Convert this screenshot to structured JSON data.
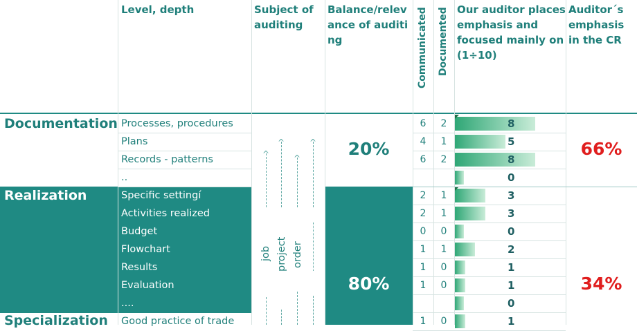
{
  "headers": {
    "level_depth": "Level, depth",
    "subject": "Subject of auditing",
    "balance": "Balance/relevance of auditing",
    "communicated": "Communicated",
    "documented": "Documented",
    "emphasis": "Our auditor places emphasis and focused mainly on (1÷10)",
    "cr": "Auditor´s emphasis in the CR"
  },
  "sections": {
    "documentation": "Documentation",
    "realization": "Realization",
    "specialization": "Specialization"
  },
  "rows": [
    {
      "item": "Processes, procedures",
      "comm": "6",
      "doc": "2",
      "emphasis": 8
    },
    {
      "item": "Plans",
      "comm": "4",
      "doc": "1",
      "emphasis": 5
    },
    {
      "item": "Records - patterns",
      "comm": "6",
      "doc": "2",
      "emphasis": 8
    },
    {
      "item": "..",
      "comm": "",
      "doc": "",
      "emphasis": 0
    },
    {
      "item": "Specific settingí",
      "comm": "2",
      "doc": "1",
      "emphasis": 3
    },
    {
      "item": "Activities realized",
      "comm": "2",
      "doc": "1",
      "emphasis": 3
    },
    {
      "item": "Budget",
      "comm": "0",
      "doc": "0",
      "emphasis": 0
    },
    {
      "item": "Flowchart",
      "comm": "1",
      "doc": "1",
      "emphasis": 2
    },
    {
      "item": "Results",
      "comm": "1",
      "doc": "0",
      "emphasis": 1
    },
    {
      "item": "Evaluation",
      "comm": "1",
      "doc": "0",
      "emphasis": 1
    },
    {
      "item": "....",
      "comm": "",
      "doc": "",
      "emphasis": 0
    },
    {
      "item": "Good practice of trade",
      "comm": "1",
      "doc": "0",
      "emphasis": 1
    }
  ],
  "subject_words": {
    "job": "job",
    "project": "project",
    "order": "order"
  },
  "balance": {
    "documentation": "20%",
    "realization": "80%"
  },
  "cr": {
    "documentation": "66%",
    "realization": "34%"
  },
  "colors": {
    "teal": "#1f8a83",
    "accent_red": "#e01e1e",
    "bar_green": "#2fa776"
  }
}
